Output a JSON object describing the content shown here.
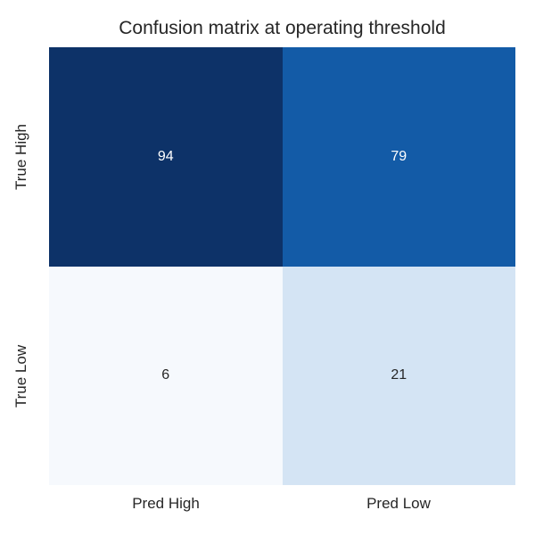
{
  "title": "Confusion matrix at operating threshold",
  "chart_data": {
    "type": "heatmap",
    "title": "Confusion matrix at operating threshold",
    "x_labels": [
      "Pred High",
      "Pred Low"
    ],
    "y_labels": [
      "True High",
      "True Low"
    ],
    "values": [
      [
        94,
        79
      ],
      [
        6,
        21
      ]
    ],
    "colormap": "Blues",
    "value_range": [
      6,
      94
    ],
    "annotations": true,
    "colorbar": false,
    "gridlines": false,
    "cell_colors": [
      [
        "#0d3268",
        "#135ba7"
      ],
      [
        "#f6f9fd",
        "#d4e4f4"
      ]
    ],
    "cell_text_colors": [
      [
        "#ffffff",
        "#ffffff"
      ],
      [
        "#262626",
        "#262626"
      ]
    ]
  },
  "colors": {
    "background": "#ffffff",
    "text": "#262626"
  }
}
